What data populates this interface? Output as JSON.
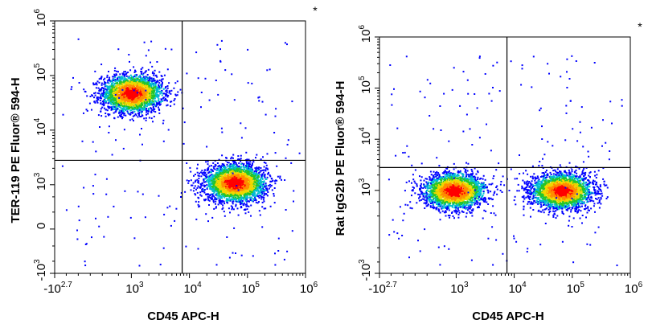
{
  "chart_data": [
    {
      "type": "scatter",
      "subtype": "flow-cytometry-density-dot-plot",
      "xlabel": "CD45 APC-H",
      "ylabel": "TER-119 PE Fluor® 594-H",
      "marker": "*",
      "x_scale": "biexponential",
      "y_scale": "biexponential",
      "xlim": [
        -500,
        1000000
      ],
      "ylim": [
        -1000,
        1000000
      ],
      "x_ticks": [
        {
          "value": -500,
          "base": "-10",
          "exp": "2.7"
        },
        {
          "value": 1000,
          "base": "10",
          "exp": "3"
        },
        {
          "value": 10000,
          "base": "10",
          "exp": "4"
        },
        {
          "value": 100000,
          "base": "10",
          "exp": "5"
        },
        {
          "value": 1000000,
          "base": "10",
          "exp": "6"
        }
      ],
      "y_ticks": [
        {
          "value": -1000,
          "base": "-10",
          "exp": "3"
        },
        {
          "value": 0,
          "base": "0",
          "exp": ""
        },
        {
          "value": 1000,
          "base": "10",
          "exp": "3"
        },
        {
          "value": 10000,
          "base": "10",
          "exp": "4"
        },
        {
          "value": 100000,
          "base": "10",
          "exp": "5"
        },
        {
          "value": 1000000,
          "base": "10",
          "exp": "6"
        }
      ],
      "quadrant_gate": {
        "x": 7500,
        "y": 2800
      },
      "populations": [
        {
          "x_center": 1000,
          "y_center": 48000,
          "n": 2600
        },
        {
          "x_center": 60000,
          "y_center": 1100,
          "n": 2800
        }
      ],
      "grid": false
    },
    {
      "type": "scatter",
      "subtype": "flow-cytometry-density-dot-plot",
      "xlabel": "CD45 APC-H",
      "ylabel": "Rat IgG2b PE Fluor® 594-H",
      "marker": "*",
      "x_scale": "biexponential",
      "y_scale": "biexponential",
      "xlim": [
        -500,
        1000000
      ],
      "ylim": [
        -1000,
        1000000
      ],
      "x_ticks": [
        {
          "value": -500,
          "base": "-10",
          "exp": "2.7"
        },
        {
          "value": 1000,
          "base": "10",
          "exp": "3"
        },
        {
          "value": 10000,
          "base": "10",
          "exp": "4"
        },
        {
          "value": 100000,
          "base": "10",
          "exp": "5"
        },
        {
          "value": 1000000,
          "base": "10",
          "exp": "6"
        }
      ],
      "y_ticks": [
        {
          "value": -1000,
          "base": "-10",
          "exp": "3"
        },
        {
          "value": 1000,
          "base": "10",
          "exp": "3"
        },
        {
          "value": 10000,
          "base": "10",
          "exp": "4"
        },
        {
          "value": 100000,
          "base": "10",
          "exp": "5"
        },
        {
          "value": 1000000,
          "base": "10",
          "exp": "6"
        }
      ],
      "quadrant_gate": {
        "x": 7500,
        "y": 2800
      },
      "populations": [
        {
          "x_center": 900,
          "y_center": 1000,
          "n": 2400
        },
        {
          "x_center": 65000,
          "y_center": 1000,
          "n": 2600
        }
      ],
      "grid": false
    }
  ]
}
